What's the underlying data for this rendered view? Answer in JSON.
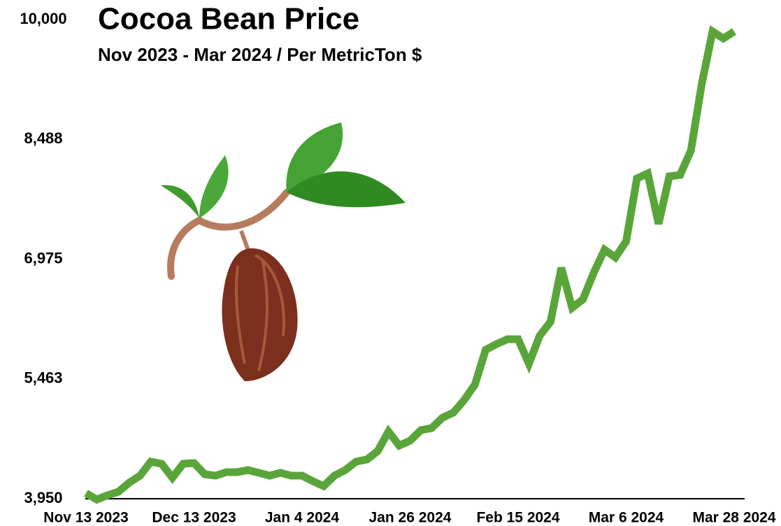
{
  "chart_data": {
    "type": "line",
    "title": "Cocoa Bean Price",
    "subtitle": "Nov 2023 - Mar 2024 / Per MetricTon $",
    "categories": [
      "Nov 13 2023",
      null,
      null,
      null,
      null,
      null,
      null,
      null,
      null,
      null,
      "Dec 13 2023",
      null,
      null,
      null,
      null,
      null,
      null,
      null,
      null,
      null,
      "Jan 4 2024",
      null,
      null,
      null,
      null,
      null,
      null,
      null,
      null,
      null,
      "Jan 26 2024",
      null,
      null,
      null,
      null,
      null,
      null,
      null,
      null,
      null,
      "Feb 15 2024",
      null,
      null,
      null,
      null,
      null,
      null,
      null,
      null,
      null,
      "Mar 6 2024",
      null,
      null,
      null,
      null,
      null,
      null,
      null,
      null,
      null,
      "Mar 28 2024"
    ],
    "series": [
      {
        "name": "Cocoa Bean Price",
        "color": "#5aa53a",
        "values": [
          4021,
          3940,
          3994,
          4038,
          4153,
          4241,
          4418,
          4392,
          4215,
          4392,
          4400,
          4259,
          4241,
          4286,
          4286,
          4312,
          4277,
          4241,
          4277,
          4241,
          4241,
          4171,
          4109,
          4241,
          4312,
          4418,
          4445,
          4551,
          4798,
          4621,
          4683,
          4816,
          4842,
          4974,
          5036,
          5195,
          5390,
          5831,
          5902,
          5964,
          5964,
          5655,
          6008,
          6184,
          6865,
          6361,
          6467,
          6803,
          7094,
          6997,
          7200,
          7995,
          8057,
          7421,
          8021,
          8039,
          8348,
          9187,
          9850,
          9762,
          9850
        ]
      }
    ],
    "ylim": [
      3950,
      10000
    ],
    "yticks": [
      {
        "value": 3950,
        "label": "3,950"
      },
      {
        "value": 5463,
        "label": "5,463"
      },
      {
        "value": 6975,
        "label": "6,975"
      },
      {
        "value": 8488,
        "label": "8,488"
      },
      {
        "value": 10000,
        "label": "10,000"
      }
    ],
    "grid": false
  }
}
